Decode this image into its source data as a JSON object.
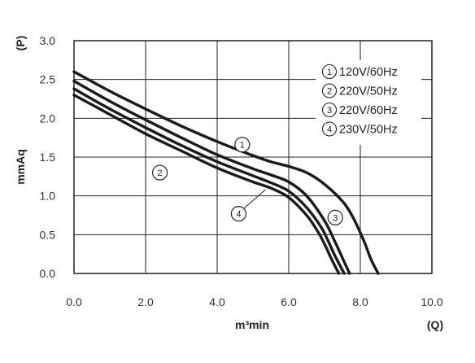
{
  "chart_data": {
    "type": "line",
    "title": "",
    "xlabel": "m³min",
    "xunit": "(Q)",
    "ylabel": "mmAq",
    "yunit": "(P)",
    "xlim": [
      0,
      10
    ],
    "ylim": [
      0,
      3
    ],
    "xticks": [
      "0.0",
      "2.0",
      "4.0",
      "6.0",
      "8.0",
      "10.0"
    ],
    "yticks": [
      "0.0",
      "0.5",
      "1.0",
      "1.5",
      "2.0",
      "2.5",
      "3.0"
    ],
    "grid": true,
    "legend_position": "top-right",
    "series": [
      {
        "name": "120V/60Hz",
        "marker": "1",
        "x": [
          0,
          1,
          2,
          3,
          4,
          5,
          5.5,
          6,
          6.5,
          7,
          7.5,
          7.8,
          8.1,
          8.3,
          8.5
        ],
        "y": [
          2.6,
          2.35,
          2.12,
          1.9,
          1.7,
          1.52,
          1.44,
          1.38,
          1.3,
          1.15,
          0.93,
          0.72,
          0.42,
          0.18,
          0.0
        ]
      },
      {
        "name": "220V/50Hz",
        "marker": "2",
        "x": [
          0,
          1,
          2,
          3,
          4,
          5,
          5.5,
          6,
          6.5,
          6.8,
          7.0,
          7.2,
          7.4
        ],
        "y": [
          2.3,
          2.05,
          1.8,
          1.58,
          1.36,
          1.18,
          1.1,
          0.98,
          0.75,
          0.55,
          0.38,
          0.18,
          0.0
        ]
      },
      {
        "name": "220V/60Hz",
        "marker": "3",
        "x": [
          0,
          1,
          2,
          3,
          4,
          5,
          5.5,
          6,
          6.5,
          7.0,
          7.3,
          7.5,
          7.7
        ],
        "y": [
          2.48,
          2.22,
          1.98,
          1.75,
          1.53,
          1.35,
          1.27,
          1.18,
          1.0,
          0.68,
          0.4,
          0.2,
          0.0
        ]
      },
      {
        "name": "230V/50Hz",
        "marker": "4",
        "x": [
          0,
          1,
          2,
          3,
          4,
          5,
          5.5,
          6,
          6.5,
          6.9,
          7.1,
          7.3,
          7.55
        ],
        "y": [
          2.38,
          2.12,
          1.88,
          1.65,
          1.44,
          1.26,
          1.17,
          1.06,
          0.85,
          0.6,
          0.42,
          0.22,
          0.0
        ]
      }
    ],
    "curve_markers": [
      {
        "label": "1",
        "x": 4.7,
        "y": 1.66
      },
      {
        "label": "2",
        "x": 2.4,
        "y": 1.3
      },
      {
        "label": "3",
        "x": 7.3,
        "y": 0.72
      },
      {
        "label": "4",
        "x": 4.6,
        "y": 0.77
      }
    ]
  }
}
